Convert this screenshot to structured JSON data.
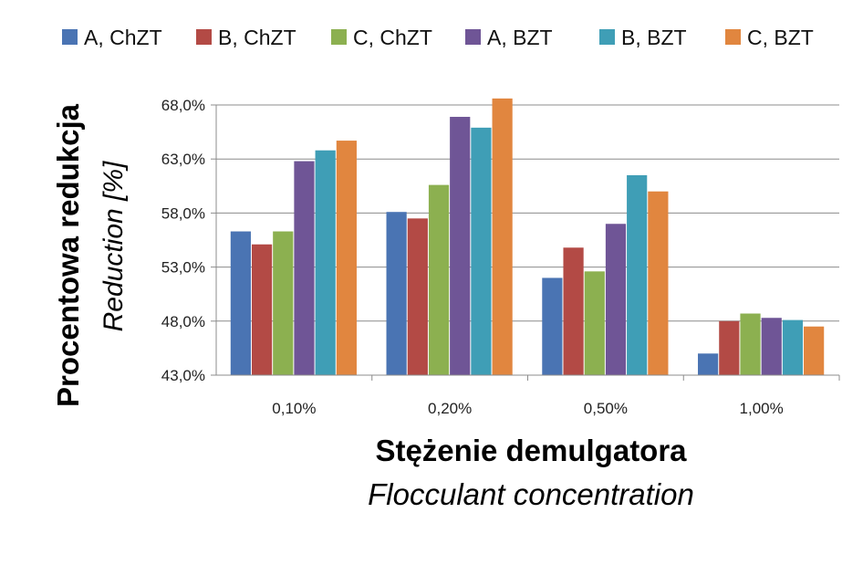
{
  "chart_data": {
    "type": "bar",
    "categories": [
      "0,10%",
      "0,20%",
      "0,50%",
      "1,00%"
    ],
    "series": [
      {
        "name": "A, ChZT",
        "color": "#4a74b3",
        "values": [
          56.3,
          58.1,
          52.0,
          45.0
        ]
      },
      {
        "name": "B, ChZT",
        "color": "#b34a45",
        "values": [
          55.1,
          57.5,
          54.8,
          48.0
        ]
      },
      {
        "name": "C, ChZT",
        "color": "#8cb050",
        "values": [
          56.3,
          60.6,
          52.6,
          48.7
        ]
      },
      {
        "name": "A, BZT",
        "color": "#6f5596",
        "values": [
          62.8,
          66.9,
          57.0,
          48.3
        ]
      },
      {
        "name": "B, BZT",
        "color": "#3f9eb6",
        "values": [
          63.8,
          65.9,
          61.5,
          48.1
        ]
      },
      {
        "name": "C, BZT",
        "color": "#e1863f",
        "values": [
          64.7,
          68.6,
          60.0,
          47.5
        ]
      }
    ],
    "yticks": [
      "43,0%",
      "48,0%",
      "53,0%",
      "58,0%",
      "63,0%",
      "68,0%"
    ],
    "ytick_values": [
      43,
      48,
      53,
      58,
      63,
      68
    ],
    "ylim": [
      43,
      68
    ],
    "ylabel": "Procentowa redukcja",
    "ylabel_sub": "Reduction [%]",
    "xlabel": "Stężenie demulgatora",
    "xlabel_sub": "Flocculant concentration",
    "legend_position": "top",
    "grid": true,
    "gridline_color": "#8c8c8c",
    "axis_color": "#8c8c8c"
  }
}
